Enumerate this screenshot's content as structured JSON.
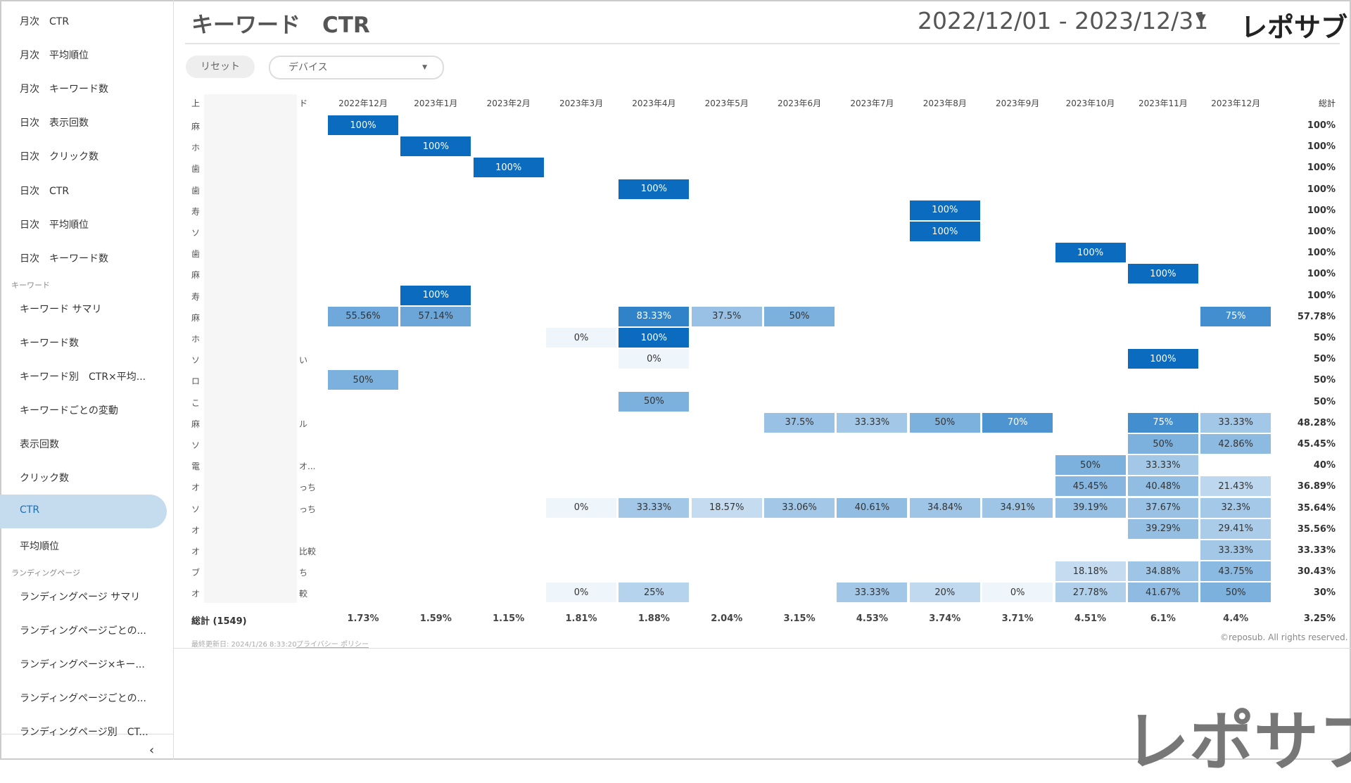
{
  "sidebar": {
    "groups": [
      {
        "items": [
          "月次　CTR",
          "月次　平均順位",
          "月次　キーワード数",
          "日次　表示回数",
          "日次　クリック数",
          "日次　CTR",
          "日次　平均順位",
          "日次　キーワード数"
        ]
      },
      {
        "heading": "キーワード",
        "items": [
          "キーワード サマリ",
          "キーワード数",
          "キーワード別　CTR×平均...",
          "キーワードごとの変動",
          "表示回数",
          "クリック数",
          "CTR",
          "平均順位"
        ]
      },
      {
        "heading": "ランディングページ",
        "items": [
          "ランディングページ サマリ",
          "ランディングページごとの...",
          "ランディングページ×キー...",
          "ランディングページごとの...",
          "ランディングページ別　CT..."
        ]
      }
    ],
    "active": "CTR"
  },
  "header": {
    "title": "キーワード　CTR",
    "date_range": "2022/12/01 - 2023/12/31",
    "logo": "レポサブ"
  },
  "filters": {
    "reset": "リセット",
    "device": "デバイス"
  },
  "table": {
    "label_header": [
      "上",
      "ド"
    ],
    "columns": [
      "2022年12月",
      "2023年1月",
      "2023年2月",
      "2023年3月",
      "2023年4月",
      "2023年5月",
      "2023年6月",
      "2023年7月",
      "2023年8月",
      "2023年9月",
      "2023年10月",
      "2023年11月",
      "2023年12月"
    ],
    "total_header": "総計",
    "rows": [
      {
        "label": [
          "麻",
          ""
        ],
        "cells": [
          "100%",
          null,
          null,
          null,
          null,
          null,
          null,
          null,
          null,
          null,
          null,
          null,
          null
        ],
        "total": "100%"
      },
      {
        "label": [
          "ホ",
          ""
        ],
        "cells": [
          null,
          "100%",
          null,
          null,
          null,
          null,
          null,
          null,
          null,
          null,
          null,
          null,
          null
        ],
        "total": "100%"
      },
      {
        "label": [
          "歯",
          ""
        ],
        "cells": [
          null,
          null,
          "100%",
          null,
          null,
          null,
          null,
          null,
          null,
          null,
          null,
          null,
          null
        ],
        "total": "100%"
      },
      {
        "label": [
          "歯",
          ""
        ],
        "cells": [
          null,
          null,
          null,
          null,
          "100%",
          null,
          null,
          null,
          null,
          null,
          null,
          null,
          null
        ],
        "total": "100%"
      },
      {
        "label": [
          "寿",
          ""
        ],
        "cells": [
          null,
          null,
          null,
          null,
          null,
          null,
          null,
          null,
          "100%",
          null,
          null,
          null,
          null
        ],
        "total": "100%"
      },
      {
        "label": [
          "ソ",
          ""
        ],
        "cells": [
          null,
          null,
          null,
          null,
          null,
          null,
          null,
          null,
          "100%",
          null,
          null,
          null,
          null
        ],
        "total": "100%"
      },
      {
        "label": [
          "歯",
          ""
        ],
        "cells": [
          null,
          null,
          null,
          null,
          null,
          null,
          null,
          null,
          null,
          null,
          "100%",
          null,
          null
        ],
        "total": "100%"
      },
      {
        "label": [
          "麻",
          ""
        ],
        "cells": [
          null,
          null,
          null,
          null,
          null,
          null,
          null,
          null,
          null,
          null,
          null,
          "100%",
          null
        ],
        "total": "100%"
      },
      {
        "label": [
          "寿",
          ""
        ],
        "cells": [
          null,
          "100%",
          null,
          null,
          null,
          null,
          null,
          null,
          null,
          null,
          null,
          null,
          null
        ],
        "total": "100%"
      },
      {
        "label": [
          "麻",
          ""
        ],
        "cells": [
          "55.56%",
          "57.14%",
          null,
          null,
          "83.33%",
          "37.5%",
          "50%",
          null,
          null,
          null,
          null,
          null,
          "75%"
        ],
        "total": "57.78%"
      },
      {
        "label": [
          "ホ",
          ""
        ],
        "cells": [
          null,
          null,
          null,
          "0%",
          "100%",
          null,
          null,
          null,
          null,
          null,
          null,
          null,
          null
        ],
        "total": "50%"
      },
      {
        "label": [
          "ソ",
          "い"
        ],
        "cells": [
          null,
          null,
          null,
          null,
          "0%",
          null,
          null,
          null,
          null,
          null,
          null,
          "100%",
          null
        ],
        "total": "50%"
      },
      {
        "label": [
          "ロ",
          ""
        ],
        "cells": [
          "50%",
          null,
          null,
          null,
          null,
          null,
          null,
          null,
          null,
          null,
          null,
          null,
          null
        ],
        "total": "50%"
      },
      {
        "label": [
          "こ",
          ""
        ],
        "cells": [
          null,
          null,
          null,
          null,
          "50%",
          null,
          null,
          null,
          null,
          null,
          null,
          null,
          null
        ],
        "total": "50%"
      },
      {
        "label": [
          "麻",
          "ル"
        ],
        "cells": [
          null,
          null,
          null,
          null,
          null,
          null,
          "37.5%",
          "33.33%",
          "50%",
          "70%",
          null,
          "75%",
          "33.33%"
        ],
        "total": "48.28%"
      },
      {
        "label": [
          "ソ",
          ""
        ],
        "cells": [
          null,
          null,
          null,
          null,
          null,
          null,
          null,
          null,
          null,
          null,
          null,
          "50%",
          "42.86%"
        ],
        "total": "45.45%"
      },
      {
        "label": [
          "電",
          "オ..."
        ],
        "cells": [
          null,
          null,
          null,
          null,
          null,
          null,
          null,
          null,
          null,
          null,
          "50%",
          "33.33%",
          null
        ],
        "total": "40%"
      },
      {
        "label": [
          "オ",
          "っち"
        ],
        "cells": [
          null,
          null,
          null,
          null,
          null,
          null,
          null,
          null,
          null,
          null,
          "45.45%",
          "40.48%",
          "21.43%"
        ],
        "total": "36.89%"
      },
      {
        "label": [
          "ソ",
          "っち"
        ],
        "cells": [
          null,
          null,
          null,
          "0%",
          "33.33%",
          "18.57%",
          "33.06%",
          "40.61%",
          "34.84%",
          "34.91%",
          "39.19%",
          "37.67%",
          "32.3%"
        ],
        "total": "35.64%"
      },
      {
        "label": [
          "オ",
          ""
        ],
        "cells": [
          null,
          null,
          null,
          null,
          null,
          null,
          null,
          null,
          null,
          null,
          null,
          "39.29%",
          "29.41%"
        ],
        "total": "35.56%"
      },
      {
        "label": [
          "オ",
          "比較"
        ],
        "cells": [
          null,
          null,
          null,
          null,
          null,
          null,
          null,
          null,
          null,
          null,
          null,
          null,
          "33.33%"
        ],
        "total": "33.33%"
      },
      {
        "label": [
          "ブ",
          "ち"
        ],
        "cells": [
          null,
          null,
          null,
          null,
          null,
          null,
          null,
          null,
          null,
          null,
          "18.18%",
          "34.88%",
          "43.75%"
        ],
        "total": "30.43%"
      },
      {
        "label": [
          "オ",
          "較"
        ],
        "cells": [
          null,
          null,
          null,
          "0%",
          "25%",
          null,
          null,
          "33.33%",
          "20%",
          "0%",
          "27.78%",
          "41.67%",
          "50%"
        ],
        "total": "30%"
      }
    ],
    "total_label": "総計 (1549)",
    "totals": [
      "1.73%",
      "1.59%",
      "1.15%",
      "1.81%",
      "1.88%",
      "2.04%",
      "3.15%",
      "4.53%",
      "3.74%",
      "3.71%",
      "4.51%",
      "6.1%",
      "4.4%"
    ],
    "grand_total": "3.25%"
  },
  "footer": {
    "updated": "最終更新日: 2024/1/26 8:33:20",
    "privacy": "プライバシー ポリシー",
    "copyright": "©reposub. All rights reserved.",
    "logo": "レポサブ"
  }
}
